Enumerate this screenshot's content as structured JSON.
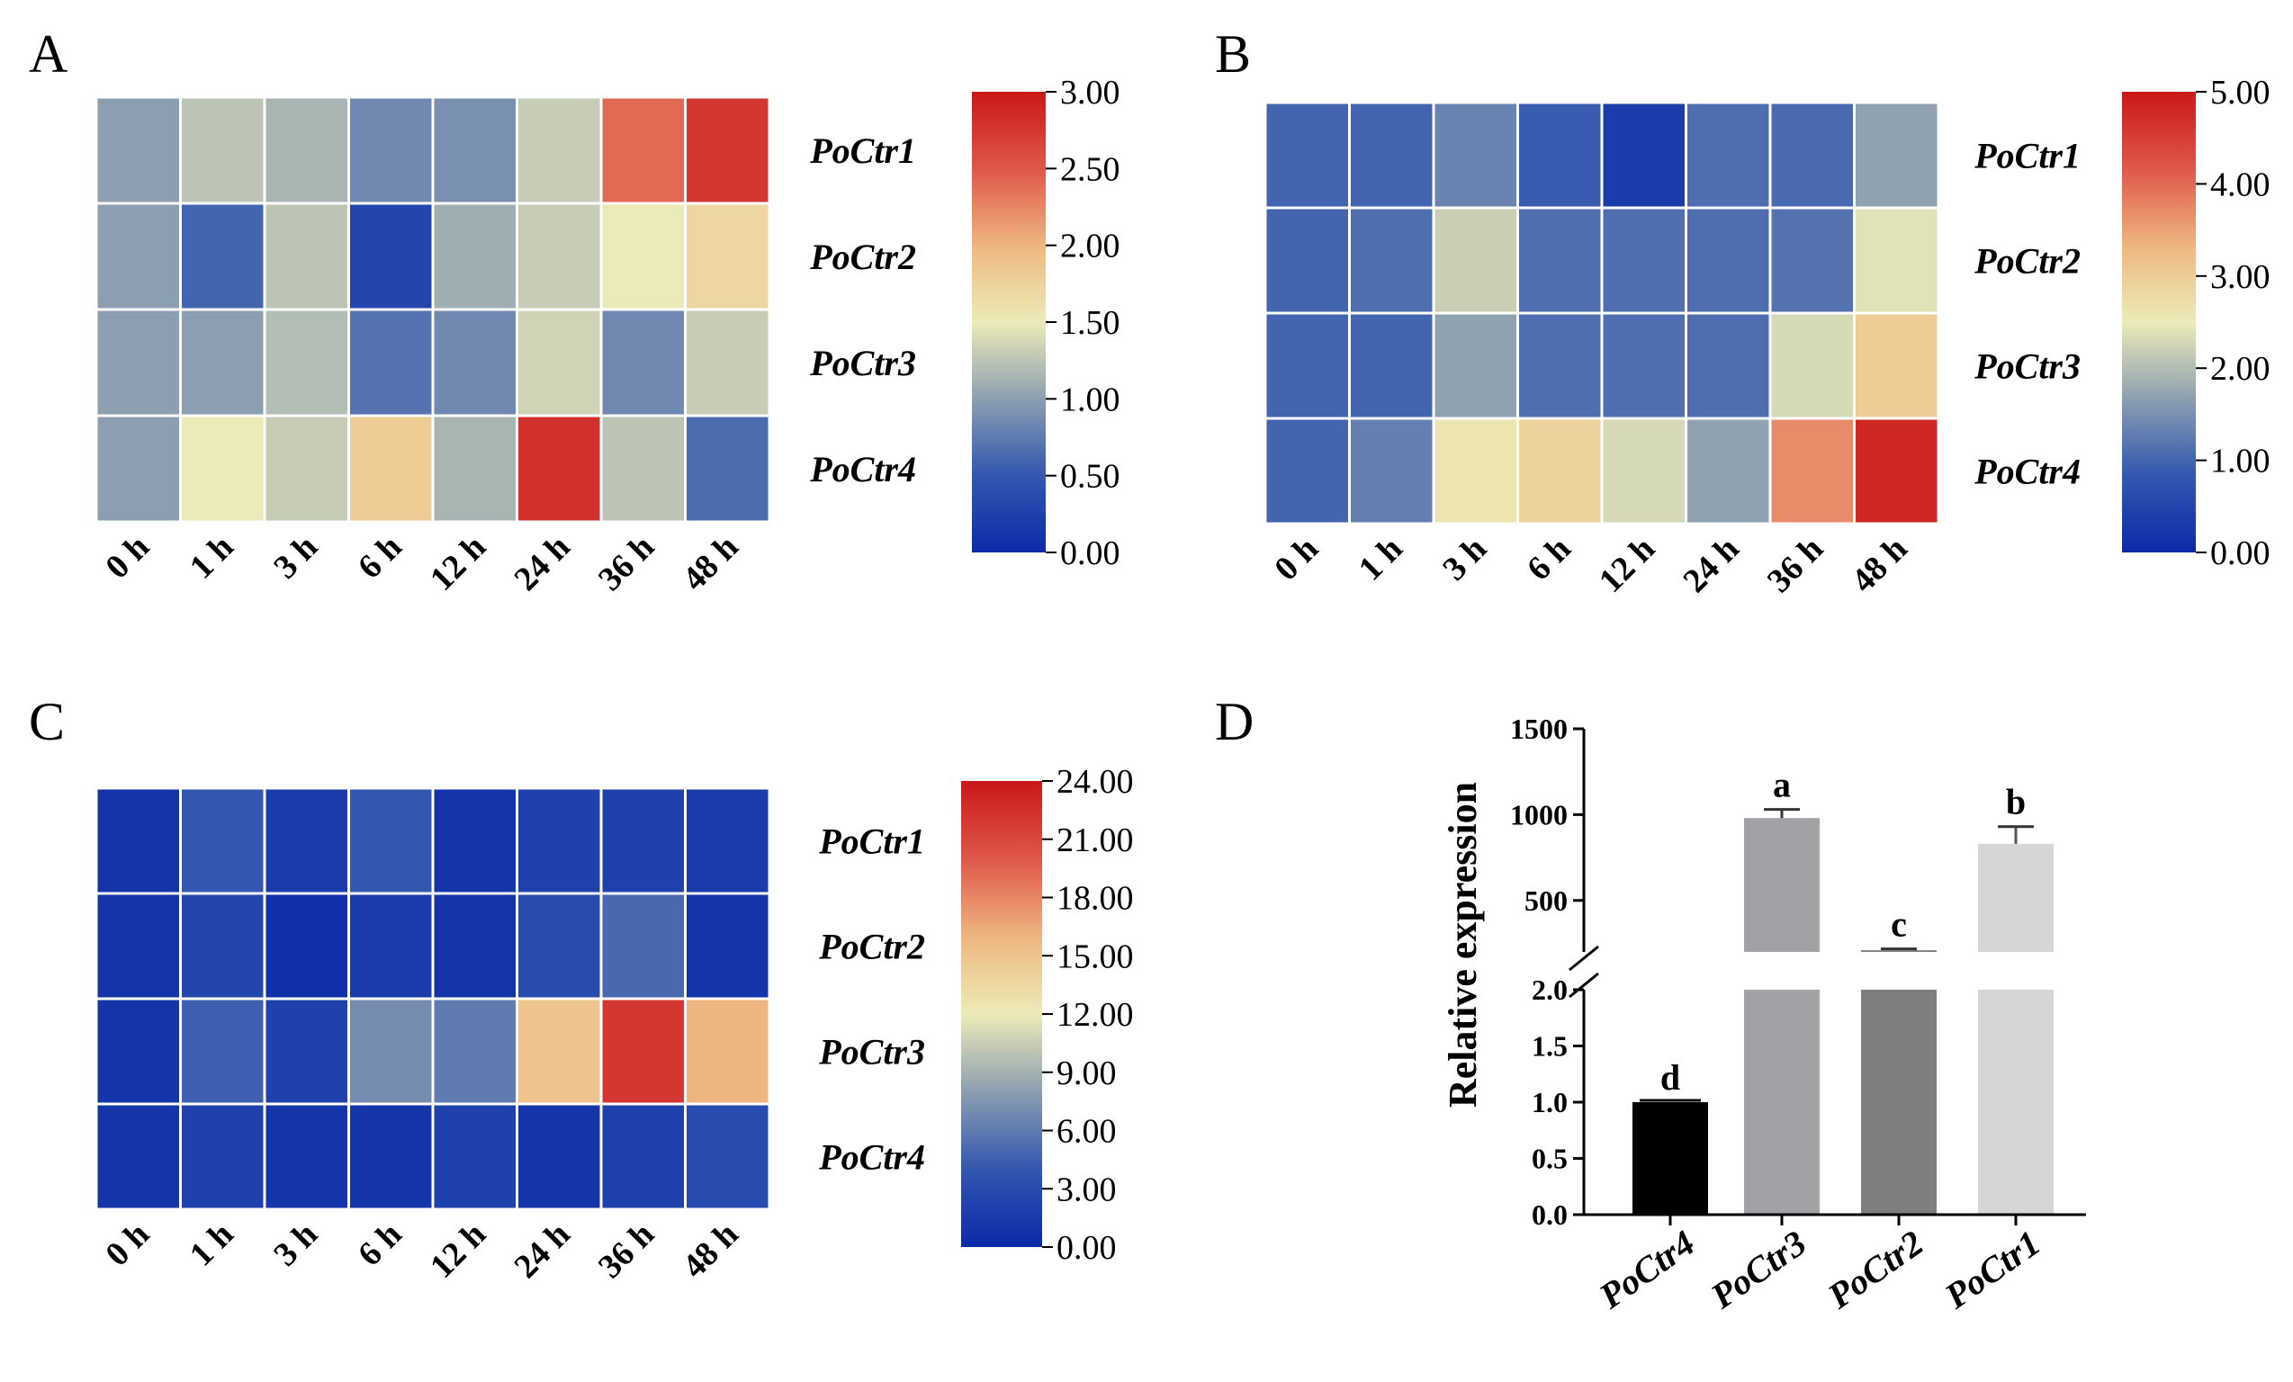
{
  "chart_data": [
    {
      "panel": "A",
      "type": "heatmap",
      "rows": [
        "PoCtr1",
        "PoCtr2",
        "PoCtr3",
        "PoCtr4"
      ],
      "columns": [
        "0 h",
        "1 h",
        "3 h",
        "6 h",
        "12 h",
        "24 h",
        "36 h",
        "48 h"
      ],
      "values": [
        [
          1.0,
          1.25,
          1.15,
          0.85,
          0.9,
          1.3,
          2.4,
          2.75
        ],
        [
          1.0,
          0.6,
          1.25,
          0.3,
          1.1,
          1.3,
          1.5,
          1.7
        ],
        [
          1.0,
          1.0,
          1.2,
          0.7,
          0.85,
          1.35,
          0.85,
          1.3
        ],
        [
          1.0,
          1.5,
          1.3,
          1.8,
          1.15,
          2.8,
          1.25,
          0.65
        ]
      ],
      "legend": {
        "min": 0.0,
        "max": 3.0,
        "ticks": [
          "3.00",
          "2.50",
          "2.00",
          "1.50",
          "1.00",
          "0.50",
          "0.00"
        ]
      }
    },
    {
      "panel": "B",
      "type": "heatmap",
      "rows": [
        "PoCtr1",
        "PoCtr2",
        "PoCtr3",
        "PoCtr4"
      ],
      "columns": [
        "0 h",
        "1 h",
        "3 h",
        "6 h",
        "12 h",
        "24 h",
        "36 h",
        "48 h"
      ],
      "values": [
        [
          1.0,
          1.0,
          1.35,
          0.9,
          0.35,
          1.1,
          1.05,
          1.7
        ],
        [
          1.0,
          1.1,
          2.2,
          1.1,
          1.1,
          1.1,
          1.15,
          2.4
        ],
        [
          1.0,
          1.0,
          1.7,
          1.1,
          1.1,
          1.1,
          2.3,
          3.0
        ],
        [
          1.0,
          1.3,
          2.6,
          2.9,
          2.3,
          1.7,
          3.7,
          4.8
        ]
      ],
      "legend": {
        "min": 0.0,
        "max": 5.0,
        "ticks": [
          "5.00",
          "4.00",
          "3.00",
          "2.00",
          "1.00",
          "0.00"
        ]
      }
    },
    {
      "panel": "C",
      "type": "heatmap",
      "rows": [
        "PoCtr1",
        "PoCtr2",
        "PoCtr3",
        "PoCtr4"
      ],
      "columns": [
        "0 h",
        "1 h",
        "3 h",
        "6 h",
        "12 h",
        "24 h",
        "36 h",
        "48 h"
      ],
      "values": [
        [
          1.0,
          4.0,
          1.5,
          4.0,
          1.0,
          2.0,
          2.0,
          1.5
        ],
        [
          1.0,
          2.5,
          0.5,
          1.5,
          1.0,
          3.0,
          5.0,
          1.0
        ],
        [
          1.0,
          4.5,
          2.0,
          7.0,
          6.0,
          15.0,
          22.0,
          16.0
        ],
        [
          1.0,
          2.0,
          1.0,
          1.0,
          2.0,
          1.0,
          2.0,
          3.0
        ]
      ],
      "legend": {
        "min": 0.0,
        "max": 24.0,
        "ticks": [
          "24.00",
          "21.00",
          "18.00",
          "15.00",
          "12.00",
          "9.00",
          "6.00",
          "3.00",
          "0.00"
        ]
      }
    },
    {
      "panel": "D",
      "type": "bar",
      "categories": [
        "PoCtr4",
        "PoCtr3",
        "PoCtr2",
        "PoCtr1"
      ],
      "values": [
        1.0,
        980,
        210,
        830
      ],
      "errors": [
        0.01,
        50,
        8,
        100
      ],
      "significance": [
        "d",
        "a",
        "c",
        "b"
      ],
      "colors": [
        "#000000",
        "#a2a1a6",
        "#7e7e7e",
        "#d6d6d6"
      ],
      "ylabel": "Relative expression",
      "broken_axis": {
        "lower_range": [
          0,
          2.0
        ],
        "lower_ticks": [
          "0.0",
          "0.5",
          "1.0",
          "1.5",
          "2.0"
        ],
        "upper_range": [
          200,
          1500
        ],
        "upper_ticks": [
          "500",
          "1000",
          "1500"
        ]
      }
    }
  ]
}
